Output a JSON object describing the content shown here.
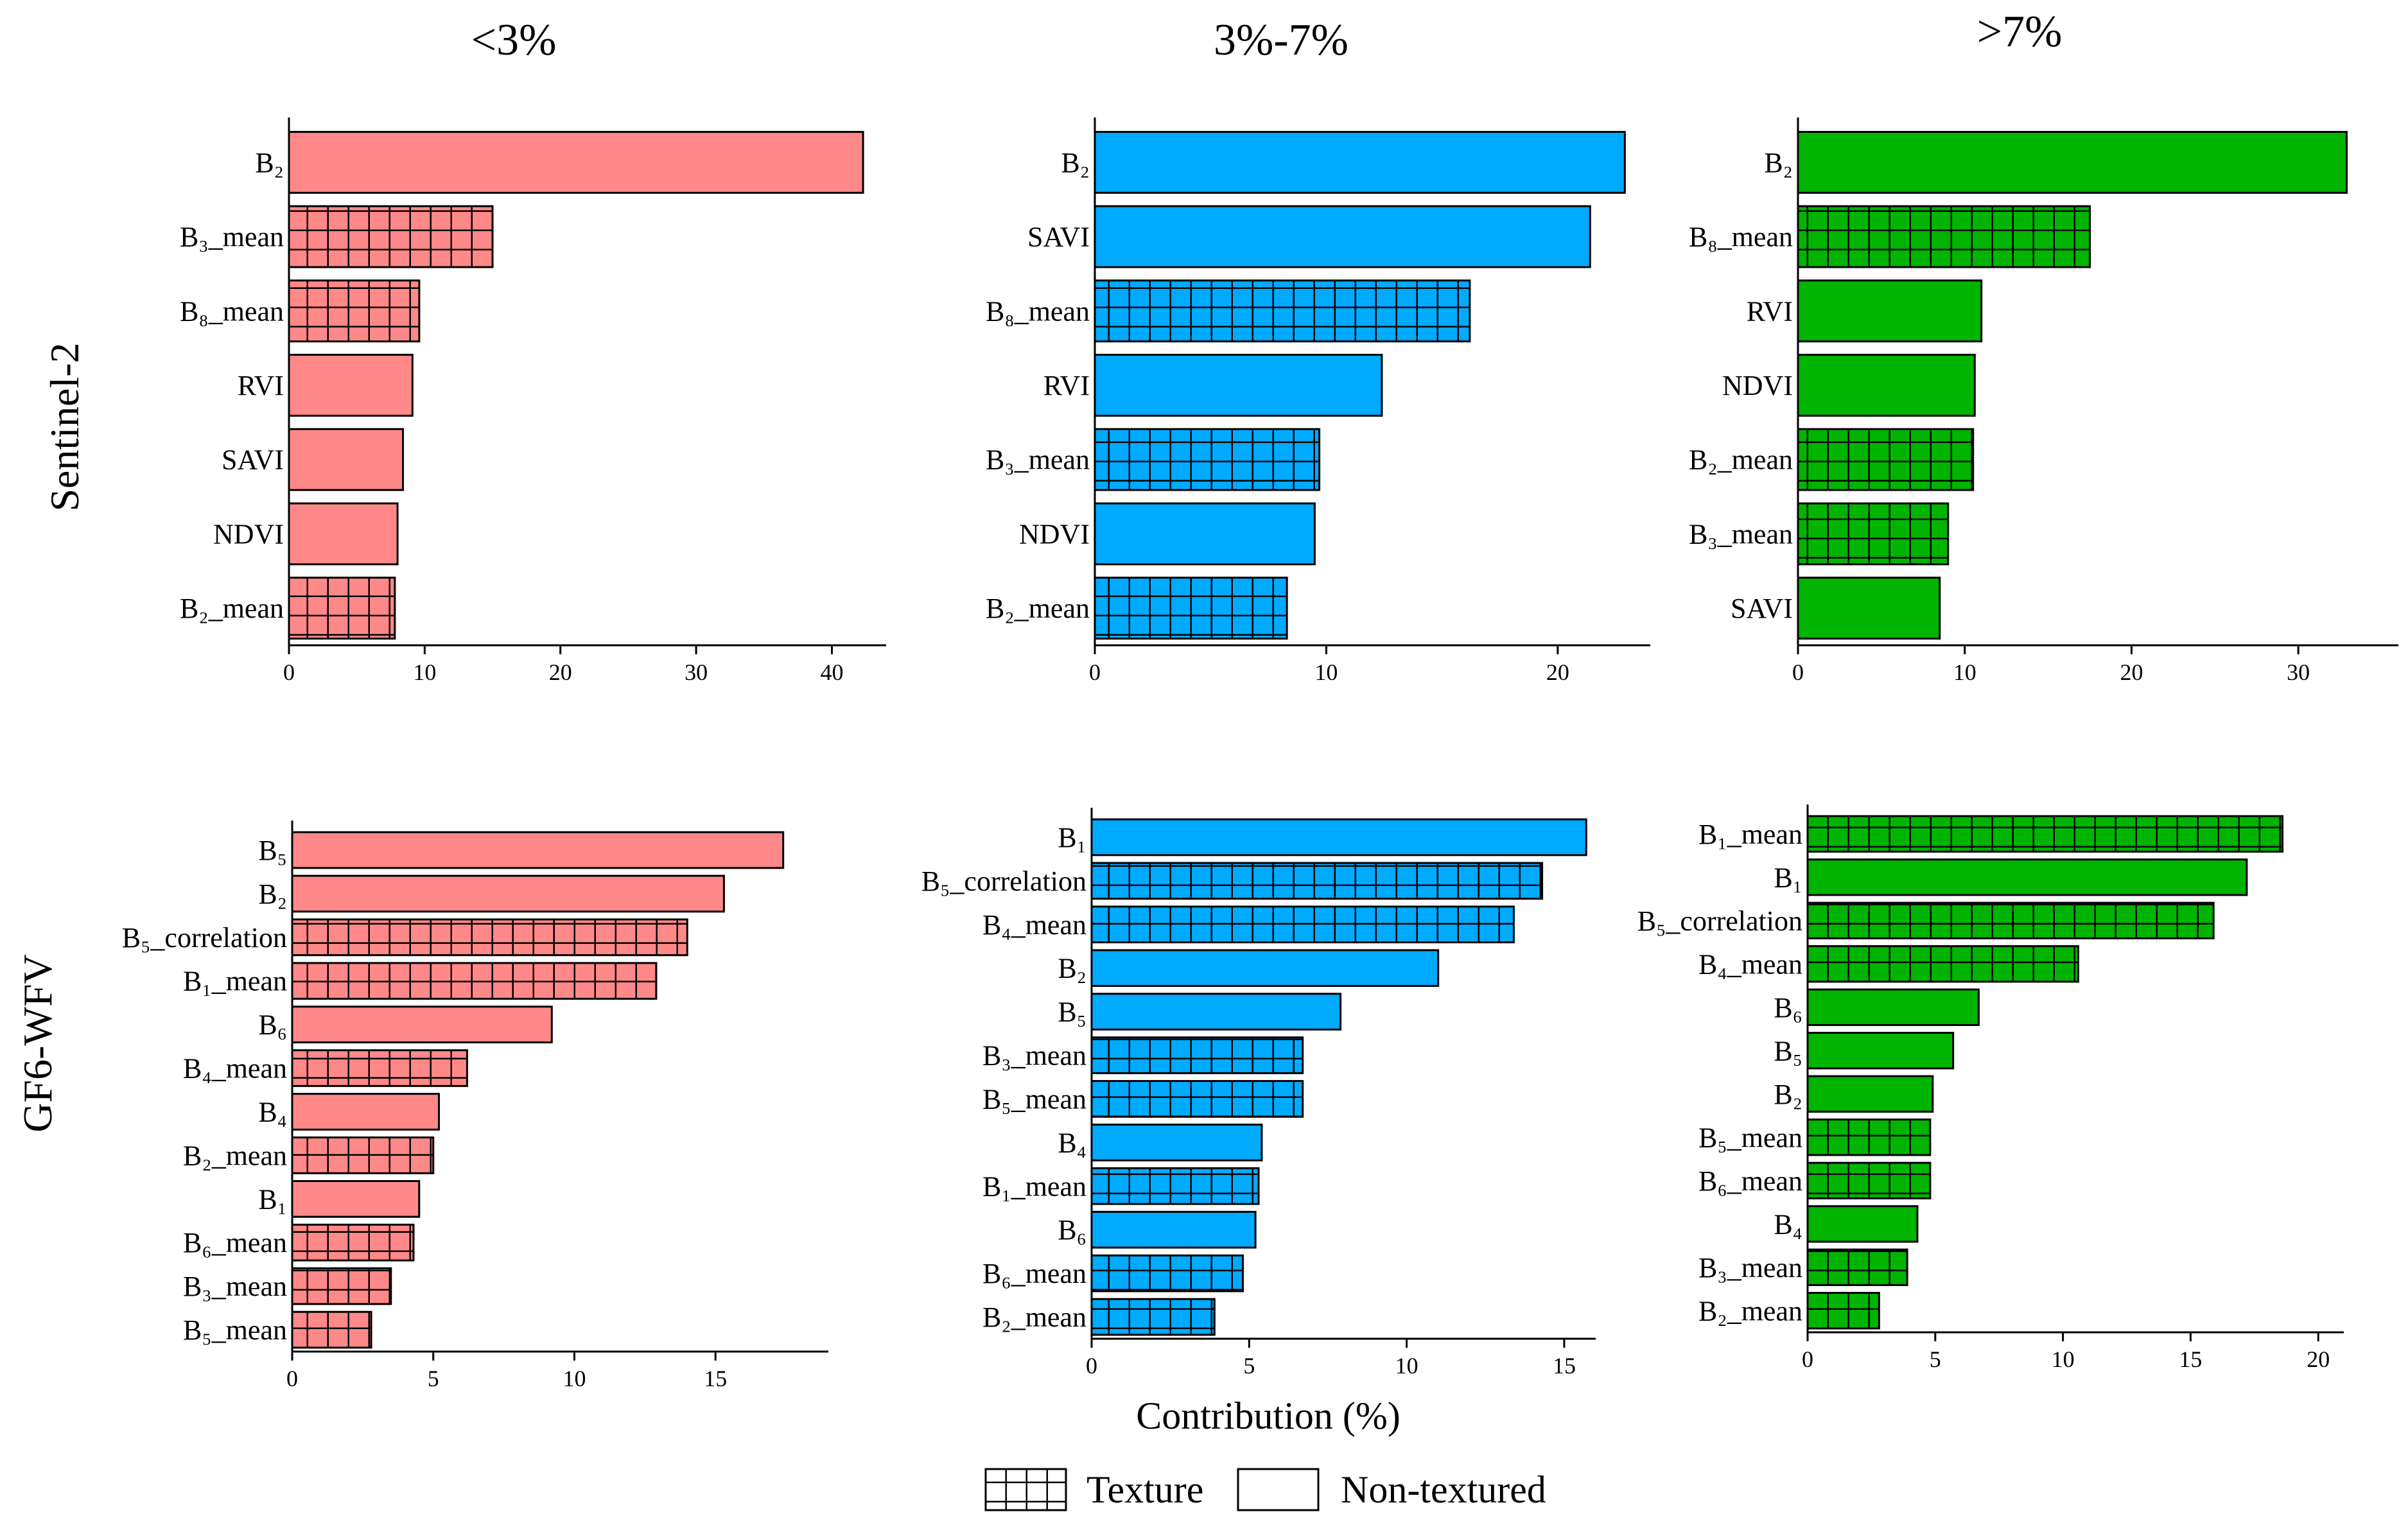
{
  "figure": {
    "column_titles": [
      "<3%",
      "3%-7%",
      ">7%"
    ],
    "row_titles": [
      "Sentinel-2",
      "GF6-WFV"
    ],
    "xlabel": "Contribution (%)"
  },
  "legend": {
    "texture_label": "Texture",
    "nontextured_label": "Non-textured"
  },
  "colors": {
    "red": "#ff8989",
    "blue": "#00aaff",
    "green": "#00b400"
  },
  "chart_data": [
    {
      "type": "bar",
      "orientation": "horizontal",
      "row": "Sentinel-2",
      "column": "<3%",
      "color": "red",
      "xlim": [
        0,
        44
      ],
      "xticks": [
        0,
        10,
        20,
        30,
        40
      ],
      "bars": [
        {
          "label": "B₂",
          "value": 42.3,
          "texture": false
        },
        {
          "label": "B₃_mean",
          "value": 15.0,
          "texture": true
        },
        {
          "label": "B₈_mean",
          "value": 9.6,
          "texture": true
        },
        {
          "label": "RVI",
          "value": 9.1,
          "texture": false
        },
        {
          "label": "SAVI",
          "value": 8.4,
          "texture": false
        },
        {
          "label": "NDVI",
          "value": 8.0,
          "texture": false
        },
        {
          "label": "B₂_mean",
          "value": 7.8,
          "texture": true
        }
      ]
    },
    {
      "type": "bar",
      "orientation": "horizontal",
      "row": "Sentinel-2",
      "column": "3%-7%",
      "color": "blue",
      "xlim": [
        0,
        24
      ],
      "xticks": [
        0,
        10,
        20
      ],
      "bars": [
        {
          "label": "B₂",
          "value": 22.9,
          "texture": false
        },
        {
          "label": "SAVI",
          "value": 21.4,
          "texture": false
        },
        {
          "label": "B₈_mean",
          "value": 16.2,
          "texture": true
        },
        {
          "label": "RVI",
          "value": 12.4,
          "texture": false
        },
        {
          "label": "B₃_mean",
          "value": 9.7,
          "texture": true
        },
        {
          "label": "NDVI",
          "value": 9.5,
          "texture": false
        },
        {
          "label": "B₂_mean",
          "value": 8.3,
          "texture": true
        }
      ]
    },
    {
      "type": "bar",
      "orientation": "horizontal",
      "row": "Sentinel-2",
      "column": ">7%",
      "color": "green",
      "xlim": [
        0,
        36
      ],
      "xticks": [
        0,
        10,
        20,
        30
      ],
      "bars": [
        {
          "label": "B₂",
          "value": 32.9,
          "texture": false
        },
        {
          "label": "B₈_mean",
          "value": 17.5,
          "texture": true
        },
        {
          "label": "RVI",
          "value": 11.0,
          "texture": false
        },
        {
          "label": "NDVI",
          "value": 10.6,
          "texture": false
        },
        {
          "label": "B₂_mean",
          "value": 10.5,
          "texture": true
        },
        {
          "label": "B₃_mean",
          "value": 9.0,
          "texture": true
        },
        {
          "label": "SAVI",
          "value": 8.5,
          "texture": false
        }
      ]
    },
    {
      "type": "bar",
      "orientation": "horizontal",
      "row": "GF6-WFV",
      "column": "<3%",
      "color": "red",
      "xlim": [
        0,
        19
      ],
      "xticks": [
        0,
        5,
        10,
        15
      ],
      "bars": [
        {
          "label": "B₅",
          "value": 17.4,
          "texture": false
        },
        {
          "label": "B₂",
          "value": 15.3,
          "texture": false
        },
        {
          "label": "B₅_correlation",
          "value": 14.0,
          "texture": true
        },
        {
          "label": "B₁_mean",
          "value": 12.9,
          "texture": true
        },
        {
          "label": "B₆",
          "value": 9.2,
          "texture": false
        },
        {
          "label": "B₄_mean",
          "value": 6.2,
          "texture": true
        },
        {
          "label": "B₄",
          "value": 5.2,
          "texture": false
        },
        {
          "label": "B₂_mean",
          "value": 5.0,
          "texture": true
        },
        {
          "label": "B₁",
          "value": 4.5,
          "texture": false
        },
        {
          "label": "B₆_mean",
          "value": 4.3,
          "texture": true
        },
        {
          "label": "B₃_mean",
          "value": 3.5,
          "texture": true
        },
        {
          "label": "B₅_mean",
          "value": 2.8,
          "texture": true
        }
      ]
    },
    {
      "type": "bar",
      "orientation": "horizontal",
      "row": "GF6-WFV",
      "column": "3%-7%",
      "color": "blue",
      "xlim": [
        0,
        16
      ],
      "xticks": [
        0,
        5,
        10,
        15
      ],
      "bars": [
        {
          "label": "B₁",
          "value": 15.7,
          "texture": false
        },
        {
          "label": "B₅_correlation",
          "value": 14.3,
          "texture": true
        },
        {
          "label": "B₄_mean",
          "value": 13.4,
          "texture": true
        },
        {
          "label": "B₂",
          "value": 11.0,
          "texture": false
        },
        {
          "label": "B₅",
          "value": 7.9,
          "texture": false
        },
        {
          "label": "B₃_mean",
          "value": 6.7,
          "texture": true
        },
        {
          "label": "B₅_mean",
          "value": 6.7,
          "texture": true
        },
        {
          "label": "B₄",
          "value": 5.4,
          "texture": false
        },
        {
          "label": "B₁_mean",
          "value": 5.3,
          "texture": true
        },
        {
          "label": "B₆",
          "value": 5.2,
          "texture": false
        },
        {
          "label": "B₆_mean",
          "value": 4.8,
          "texture": true
        },
        {
          "label": "B₂_mean",
          "value": 3.9,
          "texture": true
        }
      ]
    },
    {
      "type": "bar",
      "orientation": "horizontal",
      "row": "GF6-WFV",
      "column": ">7%",
      "color": "green",
      "xlim": [
        0,
        21
      ],
      "xticks": [
        0,
        5,
        10,
        15,
        20
      ],
      "bars": [
        {
          "label": "B₁_mean",
          "value": 18.6,
          "texture": true
        },
        {
          "label": "B₁",
          "value": 17.2,
          "texture": false
        },
        {
          "label": "B₅_correlation",
          "value": 15.9,
          "texture": true
        },
        {
          "label": "B₄_mean",
          "value": 10.6,
          "texture": true
        },
        {
          "label": "B₆",
          "value": 6.7,
          "texture": false
        },
        {
          "label": "B₅",
          "value": 5.7,
          "texture": false
        },
        {
          "label": "B₂",
          "value": 4.9,
          "texture": false
        },
        {
          "label": "B₅_mean",
          "value": 4.8,
          "texture": true
        },
        {
          "label": "B₆_mean",
          "value": 4.8,
          "texture": true
        },
        {
          "label": "B₄",
          "value": 4.3,
          "texture": false
        },
        {
          "label": "B₃_mean",
          "value": 3.9,
          "texture": true
        },
        {
          "label": "B₂_mean",
          "value": 2.8,
          "texture": true
        }
      ]
    }
  ]
}
